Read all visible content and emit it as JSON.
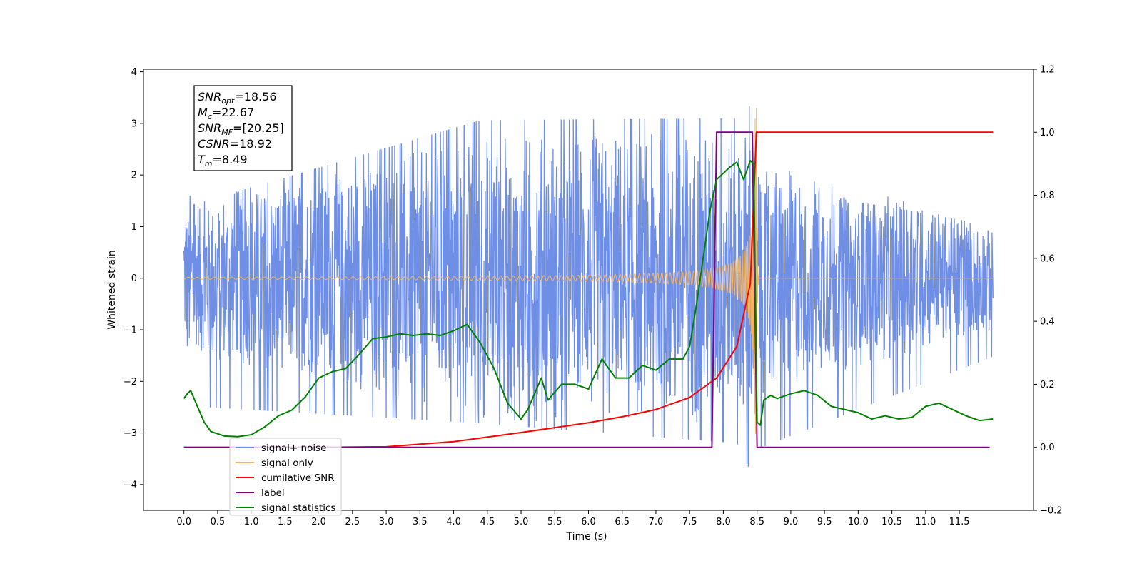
{
  "chart_data": {
    "type": "line",
    "xlabel": "Time (s)",
    "ylabel": "Whitened strain",
    "xlim": [
      -0.6,
      12.6
    ],
    "ylim": [
      -4.5,
      4.05
    ],
    "ylim_right": [
      -0.2,
      1.2
    ],
    "x_ticks": [
      0.0,
      0.5,
      1.0,
      1.5,
      2.0,
      2.5,
      3.0,
      3.5,
      4.0,
      4.5,
      5.0,
      5.5,
      6.0,
      6.5,
      7.0,
      7.5,
      8.0,
      8.5,
      9.0,
      9.5,
      10.0,
      10.5,
      11.0,
      11.5
    ],
    "x_tick_labels": [
      "0.0",
      "0.5",
      "1.0",
      "1.5",
      "2.0",
      "2.5",
      "3.0",
      "3.5",
      "4.0",
      "4.5",
      "5.0",
      "5.5",
      "6.0",
      "6.5",
      "7.0",
      "7.5",
      "8.0",
      "8.5",
      "9.0",
      "9.5",
      "10.0",
      "10.5",
      "11.0",
      "11.5"
    ],
    "y_ticks": [
      4,
      3,
      2,
      1,
      0,
      -1,
      -2,
      -3,
      -4
    ],
    "y_tick_labels": [
      "4",
      "3",
      "2",
      "1",
      "0",
      "−1",
      "−2",
      "−3",
      "−4"
    ],
    "y2_ticks": [
      1.2,
      1.0,
      0.8,
      0.6,
      0.4,
      0.2,
      0.0,
      -0.2
    ],
    "y2_tick_labels": [
      "1.2",
      "1.0",
      "0.8",
      "0.6",
      "0.4",
      "0.2",
      "0.0",
      "−0.2"
    ],
    "grid": false,
    "legend_position": "lower-left",
    "annotation": {
      "lines": [
        {
          "sym": "SNR",
          "sub": "opt",
          "value": "=18.56"
        },
        {
          "sym": "M",
          "sub": "c",
          "value": "=22.67"
        },
        {
          "sym": "SNR",
          "sub": "MF",
          "value": "=[20.25]"
        },
        {
          "sym": "CSNR",
          "sub": "",
          "value": "=18.92"
        },
        {
          "sym": "T",
          "sub": "m",
          "value": "=8.49"
        }
      ]
    },
    "series": [
      {
        "name": "signal+ noise",
        "axis": "left",
        "color": "#6f8ee6",
        "x_range": [
          0.0,
          12.0
        ],
        "envelope": {
          "x": [
            0.0,
            4.4,
            8.2,
            8.45,
            8.46,
            12.0
          ],
          "max": [
            1.5,
            3.25,
            3.3,
            3.65,
            2.0,
            1.1
          ],
          "min": [
            -2.6,
            -3.0,
            -3.4,
            -4.1,
            -3.5,
            -1.6
          ]
        }
      },
      {
        "name": "signal only",
        "axis": "left",
        "color": "#f5b460",
        "chirp": {
          "t_merger": 8.49,
          "amplitude_peak": 3.3,
          "amplitude_start": 0.02
        }
      },
      {
        "name": "cumilative SNR",
        "axis": "right",
        "color": "#ff0000",
        "x": [
          0.0,
          2.0,
          3.0,
          4.0,
          5.0,
          6.0,
          6.5,
          7.0,
          7.5,
          7.9,
          8.2,
          8.4,
          8.49,
          8.5,
          12.0
        ],
        "y": [
          0.0,
          0.0,
          0.002,
          0.018,
          0.047,
          0.078,
          0.097,
          0.12,
          0.158,
          0.22,
          0.32,
          0.52,
          1.0,
          1.0,
          1.0
        ]
      },
      {
        "name": "label",
        "axis": "right",
        "color": "#800080",
        "x": [
          0.0,
          7.83,
          7.9,
          8.43,
          8.5,
          11.95
        ],
        "y": [
          0,
          0,
          1,
          1,
          0,
          0
        ]
      },
      {
        "name": "signal statistics",
        "axis": "right",
        "color": "#008000",
        "x": [
          0.0,
          0.05,
          0.1,
          0.2,
          0.3,
          0.4,
          0.6,
          0.8,
          0.9,
          1.0,
          1.2,
          1.4,
          1.6,
          1.8,
          2.0,
          2.2,
          2.4,
          2.6,
          2.8,
          3.0,
          3.2,
          3.4,
          3.6,
          3.8,
          4.0,
          4.2,
          4.4,
          4.6,
          4.8,
          5.0,
          5.1,
          5.3,
          5.4,
          5.6,
          5.8,
          6.0,
          6.2,
          6.4,
          6.6,
          6.8,
          7.0,
          7.2,
          7.4,
          7.5,
          7.6,
          7.8,
          7.9,
          8.0,
          8.1,
          8.2,
          8.3,
          8.4,
          8.45,
          8.5,
          8.55,
          8.6,
          8.7,
          8.8,
          9.0,
          9.2,
          9.4,
          9.6,
          9.8,
          10.0,
          10.2,
          10.4,
          10.6,
          10.8,
          11.0,
          11.2,
          11.4,
          11.6,
          11.8,
          12.0
        ],
        "y": [
          0.155,
          0.17,
          0.18,
          0.13,
          0.08,
          0.05,
          0.036,
          0.034,
          0.037,
          0.04,
          0.065,
          0.1,
          0.118,
          0.16,
          0.22,
          0.24,
          0.25,
          0.295,
          0.345,
          0.35,
          0.36,
          0.355,
          0.36,
          0.355,
          0.37,
          0.39,
          0.33,
          0.25,
          0.14,
          0.09,
          0.12,
          0.22,
          0.15,
          0.2,
          0.2,
          0.185,
          0.28,
          0.22,
          0.22,
          0.26,
          0.245,
          0.28,
          0.28,
          0.32,
          0.45,
          0.75,
          0.85,
          0.87,
          0.89,
          0.905,
          0.85,
          0.91,
          0.9,
          0.08,
          0.07,
          0.15,
          0.165,
          0.155,
          0.17,
          0.18,
          0.165,
          0.13,
          0.12,
          0.11,
          0.09,
          0.1,
          0.09,
          0.095,
          0.13,
          0.14,
          0.12,
          0.1,
          0.085,
          0.09
        ]
      }
    ]
  },
  "legend": [
    {
      "label": "signal+ noise",
      "color": "#6f8ee6"
    },
    {
      "label": "signal only",
      "color": "#f5b460"
    },
    {
      "label": "cumilative SNR",
      "color": "#ff0000"
    },
    {
      "label": "label",
      "color": "#800080"
    },
    {
      "label": "signal statistics",
      "color": "#008000"
    }
  ]
}
